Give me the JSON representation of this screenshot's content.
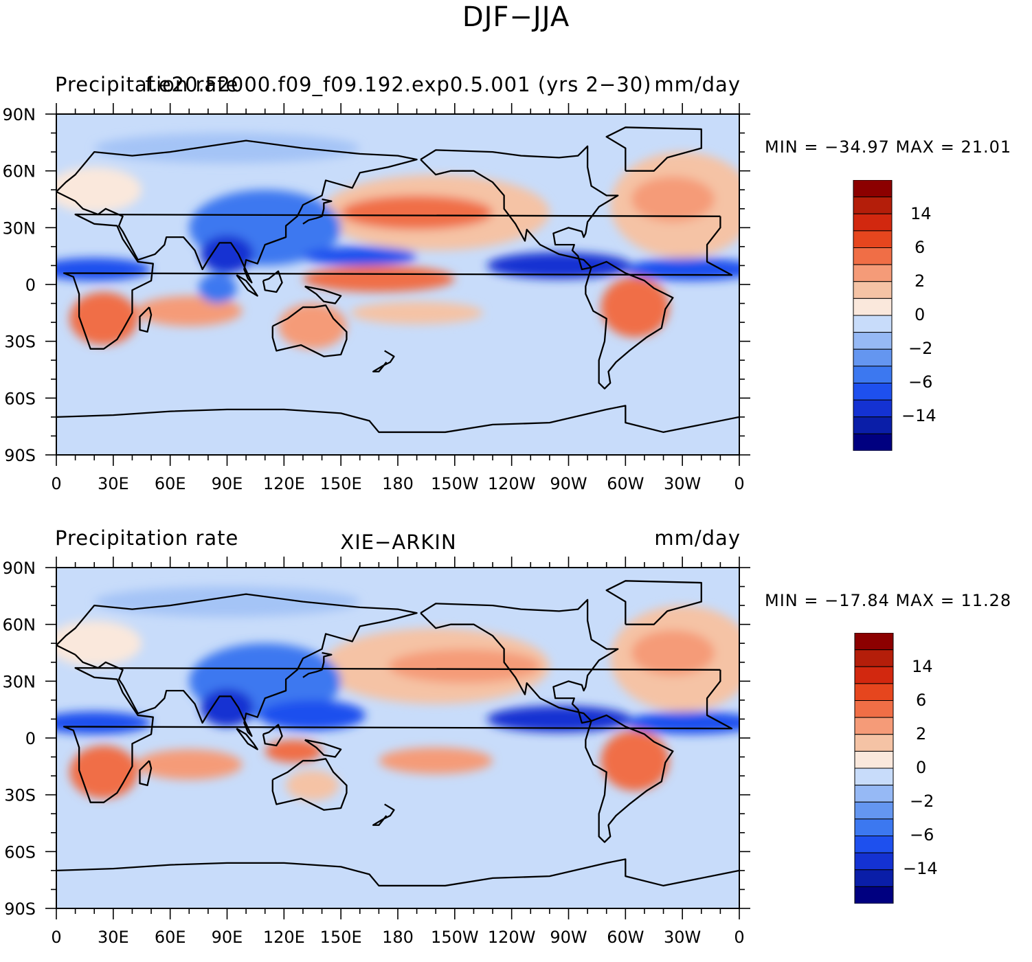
{
  "title": "DJF−JJA",
  "colors": {
    "levels": [
      "#000080",
      "#0a1ea8",
      "#1432d2",
      "#1e50ee",
      "#3c78f0",
      "#6496f0",
      "#96b9f5",
      "#c8dcfa",
      "#fae8dc",
      "#f5c3a5",
      "#f59b78",
      "#f06e46",
      "#e6461e",
      "#d2280f",
      "#b41e0a",
      "#8c0000"
    ],
    "coast": "#000000"
  },
  "axes": {
    "lat_ticks": [
      "90N",
      "60N",
      "30N",
      "0",
      "30S",
      "60S",
      "90S"
    ],
    "lon_ticks": [
      "0",
      "30E",
      "60E",
      "90E",
      "120E",
      "150E",
      "180",
      "150W",
      "120W",
      "90W",
      "60W",
      "30W",
      "0"
    ]
  },
  "panels": [
    {
      "left_title": "Precipitation rate",
      "center_title": "f.e20.F2000.f09_f09.192.exp0.5.001 (yrs 2−30)",
      "right_title": "mm/day",
      "min_max": "MIN = −34.97 MAX =  21.01",
      "colorbar_labels": [
        "14",
        "6",
        "2",
        "0",
        "−2",
        "−6",
        "−14"
      ]
    },
    {
      "left_title": "Precipitation rate",
      "center_title": "XIE−ARKIN",
      "right_title": "mm/day",
      "min_max": "MIN = −17.84 MAX =  11.28",
      "colorbar_labels": [
        "14",
        "6",
        "2",
        "0",
        "−2",
        "−6",
        "−14"
      ]
    }
  ]
}
